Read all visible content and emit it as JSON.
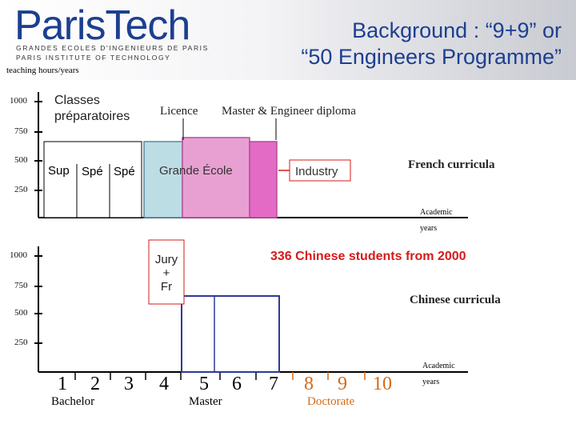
{
  "header": {
    "logo": "ParisTech",
    "logo_sub1": "GRANDES ECOLES D'INGENIEURS DE PARIS",
    "logo_sub2": "PARIS INSTITUTE OF TECHNOLOGY",
    "title_line1": "Background : “9+9” or",
    "title_line2": "“50 Engineers Programme”"
  },
  "top_chart": {
    "ylabel": "teaching hours/years",
    "ticks": [
      "1000",
      "750",
      "500",
      "250"
    ],
    "classes_label_line1": "Classes",
    "classes_label_line2": "préparatoires",
    "sup_label": "Sup",
    "spe1_label": "Spé",
    "spe2_label": "Spé",
    "licence_label": "Licence",
    "master_label": "Master & Engineer diploma",
    "grande_ecole_label": "Grande École",
    "industry_label": "Industry",
    "curricula_label": "French curricula",
    "axis_label_line1": "Academic",
    "axis_label_line2": "years"
  },
  "bottom_chart": {
    "ticks": [
      "1000",
      "750",
      "500",
      "250"
    ],
    "jury_line1": "Jury",
    "jury_line2": "+",
    "jury_line3": "Fr",
    "students_label": "336 Chinese students from 2000",
    "curricula_label": "Chinese curricula",
    "axis_label_line1": "Academic",
    "axis_label_line2": "years",
    "years": [
      "1",
      "2",
      "3",
      "4",
      "5",
      "6",
      "7",
      "8",
      "9",
      "10"
    ],
    "bachelor_label": "Bachelor",
    "master_label": "Master",
    "doctorate_label": "Doctorate"
  },
  "colors": {
    "brand": "#1c3f8f",
    "licence_fill": "#bcdde4",
    "master_fill": "#e8a0d2",
    "engineer_fill": "#e36bc6",
    "chinese_outline": "#2e3a9a",
    "doctorate": "#d56a16"
  }
}
